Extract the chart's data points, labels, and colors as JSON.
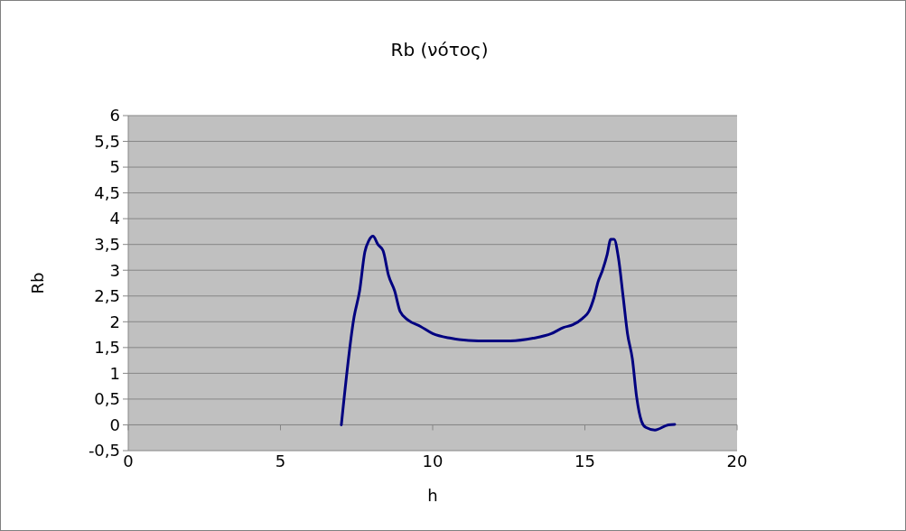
{
  "chart_data": {
    "type": "line",
    "title": "Rb (νότος)",
    "xlabel": "h",
    "ylabel": "Rb",
    "xlim": [
      0,
      20
    ],
    "xticks": [
      0,
      5,
      10,
      15,
      20
    ],
    "ylim": [
      -0.5,
      6
    ],
    "yticks": [
      {
        "value": -0.5,
        "label": "-0,5"
      },
      0,
      {
        "value": 0.5,
        "label": "0,5"
      },
      1,
      {
        "value": 1.5,
        "label": "1,5"
      },
      2,
      {
        "value": 2.5,
        "label": "2,5"
      },
      3,
      {
        "value": 3.5,
        "label": "3,5"
      },
      4,
      {
        "value": 4.5,
        "label": "4,5"
      },
      5,
      {
        "value": 5.5,
        "label": "5,5"
      },
      6
    ],
    "grid": "y",
    "marker": "none",
    "line_style": "solid",
    "series": [
      {
        "color": "#000080",
        "x": [
          7,
          7.42,
          7.6,
          7.77,
          7.9,
          8.04,
          8.2,
          8.37,
          8.55,
          8.75,
          8.93,
          9.2,
          9.6,
          10,
          10.6,
          11.5,
          12.55,
          13.3,
          13.9,
          14.3,
          14.6,
          14.93,
          15.13,
          15.3,
          15.43,
          15.58,
          15.73,
          15.85,
          15.96,
          16.1,
          16.26,
          16.4,
          16.56,
          16.7,
          16.86,
          17,
          17.3,
          17.74,
          17.95
        ],
        "values": [
          0,
          2.1,
          2.6,
          3.35,
          3.57,
          3.66,
          3.5,
          3.38,
          2.9,
          2.6,
          2.2,
          2.03,
          1.91,
          1.77,
          1.68,
          1.63,
          1.63,
          1.68,
          1.77,
          1.89,
          1.94,
          2.07,
          2.2,
          2.47,
          2.77,
          3.0,
          3.3,
          3.6,
          3.6,
          3.25,
          2.47,
          1.77,
          1.28,
          0.54,
          0.07,
          -0.05,
          -0.1,
          0,
          0.01
        ]
      }
    ]
  }
}
